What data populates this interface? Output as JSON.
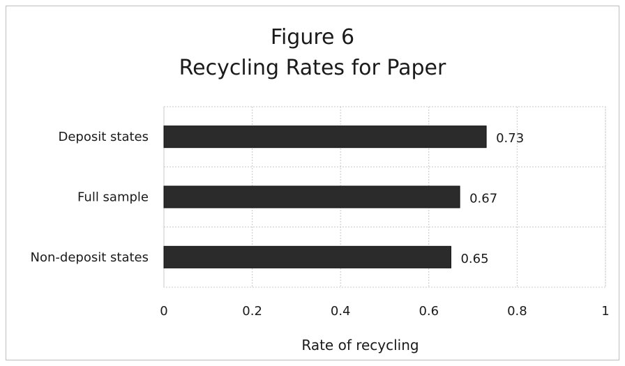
{
  "chart_data": {
    "type": "bar",
    "orientation": "horizontal",
    "title": "Figure 6",
    "subtitle": "Recycling Rates for Paper",
    "xlabel": "Rate of recycling",
    "ylabel": "",
    "xlim": [
      0,
      1
    ],
    "ticks": [
      "0",
      "0.2",
      "0.4",
      "0.6",
      "0.8",
      "1"
    ],
    "tick_values": [
      0,
      0.2,
      0.4,
      0.6,
      0.8,
      1
    ],
    "categories": [
      "Deposit states",
      "Full sample",
      "Non-deposit states"
    ],
    "values": [
      0.73,
      0.67,
      0.65
    ],
    "data_labels": [
      "0.73",
      "0.67",
      "0.65"
    ],
    "grid": true,
    "bar_color": "#2b2b2b",
    "grid_color": "#c8c8c8"
  }
}
